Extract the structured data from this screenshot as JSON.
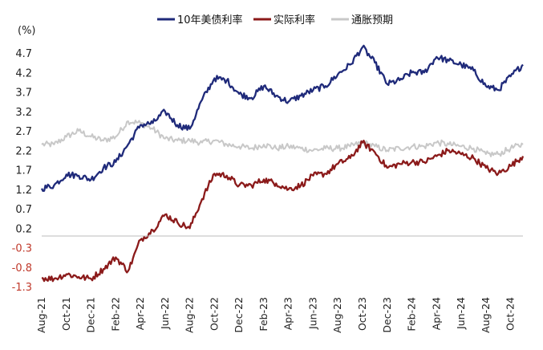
{
  "chart_data": {
    "type": "line",
    "ylabel": "(%)",
    "ylim": [
      -1.3,
      5.0
    ],
    "yticks": [
      "4.7",
      "4.2",
      "3.7",
      "3.2",
      "2.7",
      "2.2",
      "1.7",
      "1.2",
      "0.7",
      "0.2",
      "-0.3",
      "-0.8",
      "-1.3"
    ],
    "xticks": [
      "Aug-21",
      "Oct-21",
      "Dec-21",
      "Feb-22",
      "Apr-22",
      "Jun-22",
      "Aug-22",
      "Oct-22",
      "Dec-22",
      "Feb-23",
      "Apr-23",
      "Jun-23",
      "Aug-23",
      "Oct-23",
      "Dec-23",
      "Feb-24",
      "Apr-24",
      "Jun-24",
      "Aug-24",
      "Oct-24"
    ],
    "x_start": "2021-08",
    "x_end": "2024-11",
    "x": [
      "2021-08",
      "2021-09",
      "2021-10",
      "2021-11",
      "2021-12",
      "2022-01",
      "2022-02",
      "2022-03",
      "2022-04",
      "2022-05",
      "2022-06",
      "2022-07",
      "2022-08",
      "2022-09",
      "2022-10",
      "2022-11",
      "2022-12",
      "2023-01",
      "2023-02",
      "2023-03",
      "2023-04",
      "2023-05",
      "2023-06",
      "2023-07",
      "2023-08",
      "2023-09",
      "2023-10",
      "2023-11",
      "2023-12",
      "2024-01",
      "2024-02",
      "2024-03",
      "2024-04",
      "2024-05",
      "2024-06",
      "2024-07",
      "2024-08",
      "2024-09",
      "2024-10",
      "2024-11"
    ],
    "series": [
      {
        "name": "10年美债利率",
        "color": "#1f2a7a",
        "values": [
          1.22,
          1.3,
          1.58,
          1.55,
          1.45,
          1.75,
          1.9,
          2.35,
          2.85,
          2.9,
          3.2,
          2.85,
          2.75,
          3.5,
          4.05,
          4.0,
          3.65,
          3.55,
          3.85,
          3.6,
          3.45,
          3.6,
          3.75,
          3.85,
          4.15,
          4.4,
          4.85,
          4.45,
          3.9,
          4.0,
          4.2,
          4.2,
          4.6,
          4.5,
          4.4,
          4.25,
          3.85,
          3.75,
          4.1,
          4.4
        ]
      },
      {
        "name": "实际利率",
        "color": "#8b1a1a",
        "values": [
          -1.08,
          -1.1,
          -0.98,
          -1.05,
          -1.1,
          -0.85,
          -0.55,
          -0.9,
          -0.1,
          0.15,
          0.55,
          0.35,
          0.2,
          0.95,
          1.6,
          1.55,
          1.3,
          1.3,
          1.45,
          1.35,
          1.2,
          1.3,
          1.55,
          1.6,
          1.85,
          2.0,
          2.4,
          2.15,
          1.75,
          1.85,
          1.9,
          1.9,
          2.05,
          2.2,
          2.1,
          2.0,
          1.75,
          1.6,
          1.8,
          2.05
        ]
      },
      {
        "name": "通胀预期",
        "color": "#c8c8c8",
        "values": [
          2.35,
          2.35,
          2.55,
          2.7,
          2.55,
          2.45,
          2.55,
          2.95,
          2.9,
          2.75,
          2.5,
          2.45,
          2.45,
          2.4,
          2.45,
          2.35,
          2.3,
          2.25,
          2.35,
          2.25,
          2.3,
          2.25,
          2.2,
          2.25,
          2.25,
          2.3,
          2.4,
          2.3,
          2.2,
          2.25,
          2.3,
          2.3,
          2.4,
          2.35,
          2.3,
          2.25,
          2.1,
          2.1,
          2.25,
          2.35
        ]
      }
    ],
    "legend": "top-center",
    "grid": false
  }
}
